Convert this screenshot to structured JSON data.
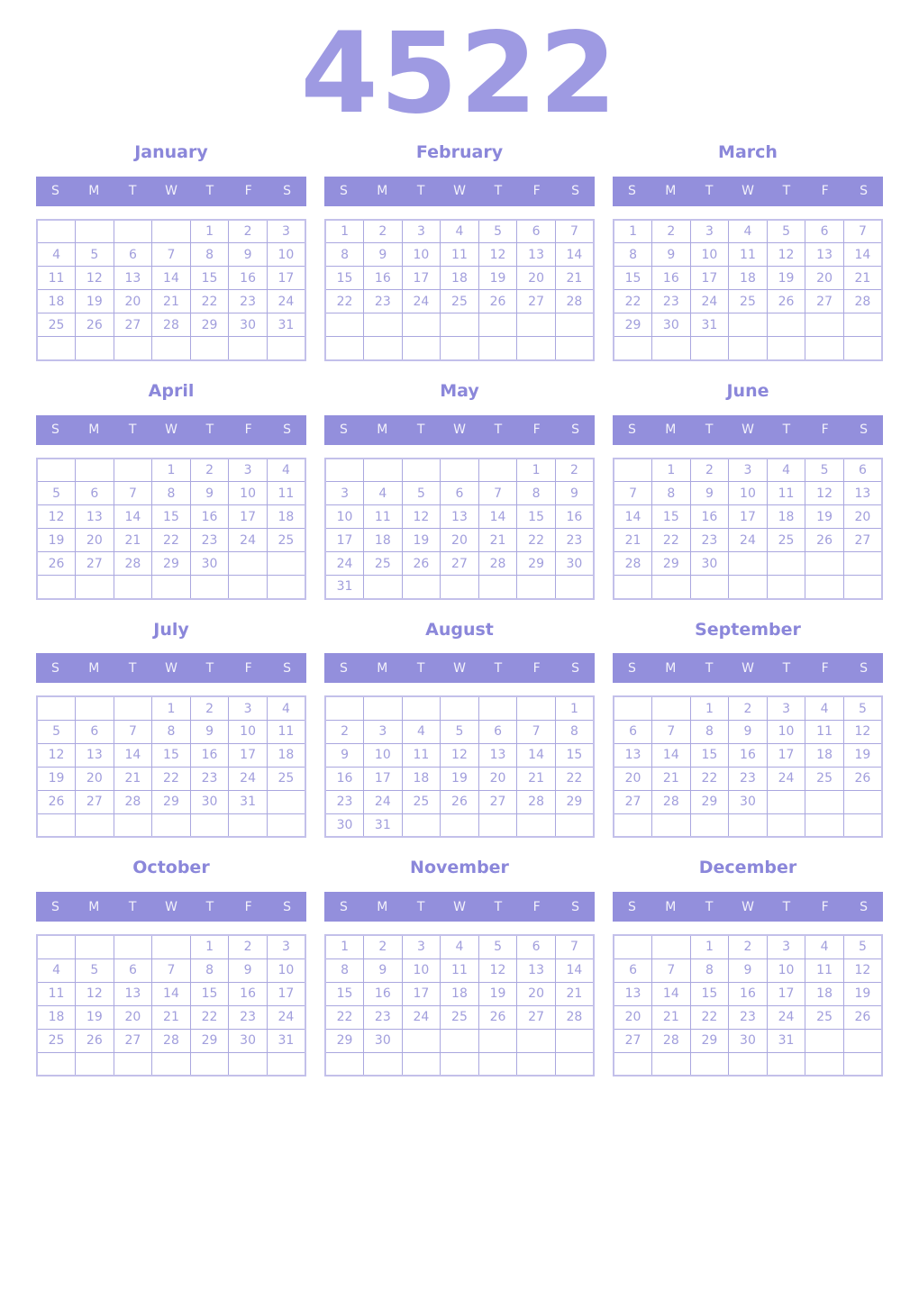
{
  "year": "4522",
  "day_headers": [
    "S",
    "M",
    "T",
    "W",
    "T",
    "F",
    "S"
  ],
  "colors": {
    "accent_title": "#9e9ae2",
    "accent_month_name": "#8b87da",
    "weekday_header_bg": "#938fdc",
    "weekday_header_text": "#f3f2fb",
    "day_number_text": "#a19edc",
    "grid_border_inner": "#aaa7df",
    "grid_border_outer": "#c3c0ea",
    "page_background": "#ffffff"
  },
  "months": [
    {
      "name": "January",
      "weeks": [
        [
          "",
          "",
          "",
          "",
          "1",
          "2",
          "3"
        ],
        [
          "4",
          "5",
          "6",
          "7",
          "8",
          "9",
          "10"
        ],
        [
          "11",
          "12",
          "13",
          "14",
          "15",
          "16",
          "17"
        ],
        [
          "18",
          "19",
          "20",
          "21",
          "22",
          "23",
          "24"
        ],
        [
          "25",
          "26",
          "27",
          "28",
          "29",
          "30",
          "31"
        ],
        [
          "",
          "",
          "",
          "",
          "",
          "",
          ""
        ]
      ]
    },
    {
      "name": "February",
      "weeks": [
        [
          "1",
          "2",
          "3",
          "4",
          "5",
          "6",
          "7"
        ],
        [
          "8",
          "9",
          "10",
          "11",
          "12",
          "13",
          "14"
        ],
        [
          "15",
          "16",
          "17",
          "18",
          "19",
          "20",
          "21"
        ],
        [
          "22",
          "23",
          "24",
          "25",
          "26",
          "27",
          "28"
        ],
        [
          "",
          "",
          "",
          "",
          "",
          "",
          ""
        ],
        [
          "",
          "",
          "",
          "",
          "",
          "",
          ""
        ]
      ]
    },
    {
      "name": "March",
      "weeks": [
        [
          "1",
          "2",
          "3",
          "4",
          "5",
          "6",
          "7"
        ],
        [
          "8",
          "9",
          "10",
          "11",
          "12",
          "13",
          "14"
        ],
        [
          "15",
          "16",
          "17",
          "18",
          "19",
          "20",
          "21"
        ],
        [
          "22",
          "23",
          "24",
          "25",
          "26",
          "27",
          "28"
        ],
        [
          "29",
          "30",
          "31",
          "",
          "",
          "",
          ""
        ],
        [
          "",
          "",
          "",
          "",
          "",
          "",
          ""
        ]
      ]
    },
    {
      "name": "April",
      "weeks": [
        [
          "",
          "",
          "",
          "1",
          "2",
          "3",
          "4"
        ],
        [
          "5",
          "6",
          "7",
          "8",
          "9",
          "10",
          "11"
        ],
        [
          "12",
          "13",
          "14",
          "15",
          "16",
          "17",
          "18"
        ],
        [
          "19",
          "20",
          "21",
          "22",
          "23",
          "24",
          "25"
        ],
        [
          "26",
          "27",
          "28",
          "29",
          "30",
          "",
          ""
        ],
        [
          "",
          "",
          "",
          "",
          "",
          "",
          ""
        ]
      ]
    },
    {
      "name": "May",
      "weeks": [
        [
          "",
          "",
          "",
          "",
          "",
          "1",
          "2"
        ],
        [
          "3",
          "4",
          "5",
          "6",
          "7",
          "8",
          "9"
        ],
        [
          "10",
          "11",
          "12",
          "13",
          "14",
          "15",
          "16"
        ],
        [
          "17",
          "18",
          "19",
          "20",
          "21",
          "22",
          "23"
        ],
        [
          "24",
          "25",
          "26",
          "27",
          "28",
          "29",
          "30"
        ],
        [
          "31",
          "",
          "",
          "",
          "",
          "",
          ""
        ]
      ]
    },
    {
      "name": "June",
      "weeks": [
        [
          "",
          "1",
          "2",
          "3",
          "4",
          "5",
          "6"
        ],
        [
          "7",
          "8",
          "9",
          "10",
          "11",
          "12",
          "13"
        ],
        [
          "14",
          "15",
          "16",
          "17",
          "18",
          "19",
          "20"
        ],
        [
          "21",
          "22",
          "23",
          "24",
          "25",
          "26",
          "27"
        ],
        [
          "28",
          "29",
          "30",
          "",
          "",
          "",
          ""
        ],
        [
          "",
          "",
          "",
          "",
          "",
          "",
          ""
        ]
      ]
    },
    {
      "name": "July",
      "weeks": [
        [
          "",
          "",
          "",
          "1",
          "2",
          "3",
          "4"
        ],
        [
          "5",
          "6",
          "7",
          "8",
          "9",
          "10",
          "11"
        ],
        [
          "12",
          "13",
          "14",
          "15",
          "16",
          "17",
          "18"
        ],
        [
          "19",
          "20",
          "21",
          "22",
          "23",
          "24",
          "25"
        ],
        [
          "26",
          "27",
          "28",
          "29",
          "30",
          "31",
          ""
        ],
        [
          "",
          "",
          "",
          "",
          "",
          "",
          ""
        ]
      ]
    },
    {
      "name": "August",
      "weeks": [
        [
          "",
          "",
          "",
          "",
          "",
          "",
          "1"
        ],
        [
          "2",
          "3",
          "4",
          "5",
          "6",
          "7",
          "8"
        ],
        [
          "9",
          "10",
          "11",
          "12",
          "13",
          "14",
          "15"
        ],
        [
          "16",
          "17",
          "18",
          "19",
          "20",
          "21",
          "22"
        ],
        [
          "23",
          "24",
          "25",
          "26",
          "27",
          "28",
          "29"
        ],
        [
          "30",
          "31",
          "",
          "",
          "",
          "",
          ""
        ]
      ]
    },
    {
      "name": "September",
      "weeks": [
        [
          "",
          "",
          "1",
          "2",
          "3",
          "4",
          "5"
        ],
        [
          "6",
          "7",
          "8",
          "9",
          "10",
          "11",
          "12"
        ],
        [
          "13",
          "14",
          "15",
          "16",
          "17",
          "18",
          "19"
        ],
        [
          "20",
          "21",
          "22",
          "23",
          "24",
          "25",
          "26"
        ],
        [
          "27",
          "28",
          "29",
          "30",
          "",
          "",
          ""
        ],
        [
          "",
          "",
          "",
          "",
          "",
          "",
          ""
        ]
      ]
    },
    {
      "name": "October",
      "weeks": [
        [
          "",
          "",
          "",
          "",
          "1",
          "2",
          "3"
        ],
        [
          "4",
          "5",
          "6",
          "7",
          "8",
          "9",
          "10"
        ],
        [
          "11",
          "12",
          "13",
          "14",
          "15",
          "16",
          "17"
        ],
        [
          "18",
          "19",
          "20",
          "21",
          "22",
          "23",
          "24"
        ],
        [
          "25",
          "26",
          "27",
          "28",
          "29",
          "30",
          "31"
        ],
        [
          "",
          "",
          "",
          "",
          "",
          "",
          ""
        ]
      ]
    },
    {
      "name": "November",
      "weeks": [
        [
          "1",
          "2",
          "3",
          "4",
          "5",
          "6",
          "7"
        ],
        [
          "8",
          "9",
          "10",
          "11",
          "12",
          "13",
          "14"
        ],
        [
          "15",
          "16",
          "17",
          "18",
          "19",
          "20",
          "21"
        ],
        [
          "22",
          "23",
          "24",
          "25",
          "26",
          "27",
          "28"
        ],
        [
          "29",
          "30",
          "",
          "",
          "",
          "",
          ""
        ],
        [
          "",
          "",
          "",
          "",
          "",
          "",
          ""
        ]
      ]
    },
    {
      "name": "December",
      "weeks": [
        [
          "",
          "",
          "1",
          "2",
          "3",
          "4",
          "5"
        ],
        [
          "6",
          "7",
          "8",
          "9",
          "10",
          "11",
          "12"
        ],
        [
          "13",
          "14",
          "15",
          "16",
          "17",
          "18",
          "19"
        ],
        [
          "20",
          "21",
          "22",
          "23",
          "24",
          "25",
          "26"
        ],
        [
          "27",
          "28",
          "29",
          "30",
          "31",
          "",
          ""
        ],
        [
          "",
          "",
          "",
          "",
          "",
          "",
          ""
        ]
      ]
    }
  ]
}
